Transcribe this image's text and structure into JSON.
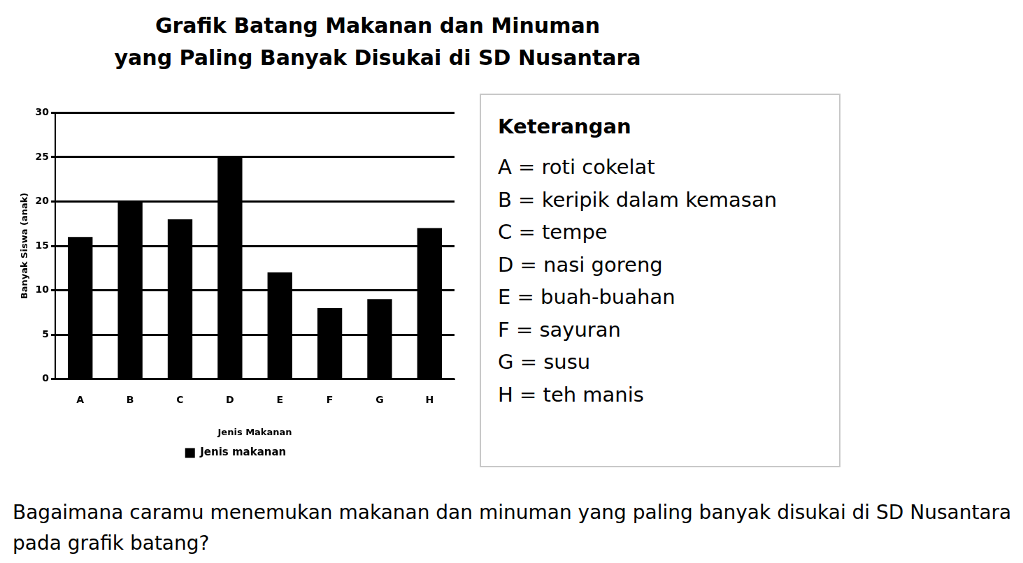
{
  "chart_data": {
    "type": "bar",
    "title": [
      "Grafik Batang Makanan dan Minuman",
      "yang Paling Banyak Disukai di SD Nusantara"
    ],
    "x_label": "Jenis Makanan",
    "y_label": "Banyak Siswa (anak)",
    "categories": [
      "A",
      "B",
      "C",
      "D",
      "E",
      "F",
      "G",
      "H"
    ],
    "series": [
      {
        "name": "Jenis makanan",
        "color": "#000000",
        "values": [
          16,
          20,
          18,
          25,
          12,
          8,
          9,
          17
        ]
      }
    ],
    "ylim": [
      0,
      30
    ],
    "yticks": [
      0,
      5,
      10,
      15,
      20,
      25,
      30
    ],
    "grid": true,
    "legend": "bottom"
  },
  "keterangan": {
    "title": "Keterangan",
    "items": [
      "A = roti cokelat",
      "B = keripik dalam kemasan",
      "C = tempe",
      "D = nasi goreng",
      "E = buah-buahan",
      "F = sayuran",
      "G = susu",
      "H = teh manis"
    ]
  },
  "question": "Bagaimana caramu menemukan makanan dan minuman yang paling banyak disukai di SD Nusantara pada grafik batang?"
}
